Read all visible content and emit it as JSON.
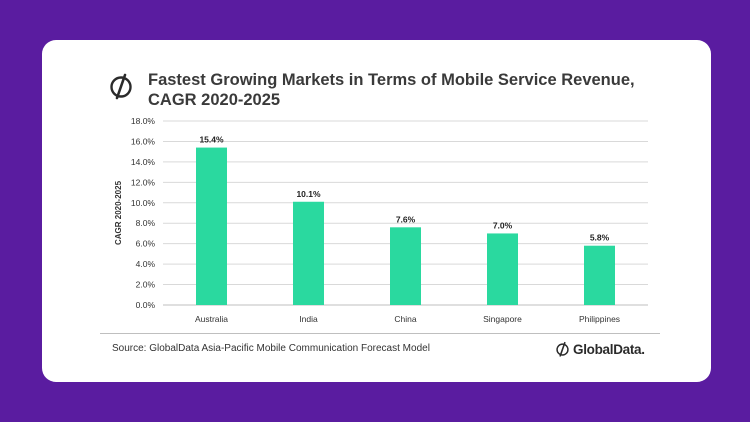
{
  "header": {
    "title_line1": "Fastest Growing Markets in Terms of Mobile Service Revenue,",
    "title_line2": "CAGR 2020-2025"
  },
  "footer": {
    "source": "Source: GlobalData Asia-Pacific Mobile Communication Forecast Model",
    "brand": "GlobalData."
  },
  "colors": {
    "background": "#5a1ca0",
    "bar": "#2ad99f",
    "gridline": "#d9d9d9"
  },
  "chart_data": {
    "type": "bar",
    "title": "Fastest Growing Markets in Terms of Mobile Service Revenue, CAGR 2020-2025",
    "xlabel": "",
    "ylabel": "CAGR 2020-2025",
    "categories": [
      "Australia",
      "India",
      "China",
      "Singapore",
      "Philippines"
    ],
    "values": [
      15.4,
      10.1,
      7.6,
      7.0,
      5.8
    ],
    "data_labels": [
      "15.4%",
      "10.1%",
      "7.6%",
      "7.0%",
      "5.8%"
    ],
    "ylim": [
      0,
      18
    ],
    "yticks": [
      0,
      2,
      4,
      6,
      8,
      10,
      12,
      14,
      16,
      18
    ],
    "ytick_labels": [
      "0.0%",
      "2.0%",
      "4.0%",
      "6.0%",
      "8.0%",
      "10.0%",
      "12.0%",
      "14.0%",
      "16.0%",
      "18.0%"
    ],
    "grid": true,
    "legend": "none"
  }
}
